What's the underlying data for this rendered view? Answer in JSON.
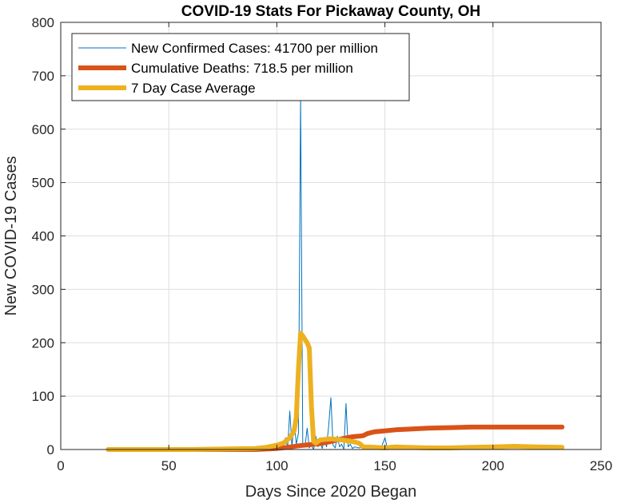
{
  "chart_data": {
    "type": "line",
    "title": "COVID-19 Stats For Pickaway County, OH",
    "xlabel": "Days Since 2020 Began",
    "ylabel": "New COVID-19 Cases",
    "xlim": [
      0,
      250
    ],
    "ylim": [
      0,
      800
    ],
    "xticks": [
      0,
      50,
      100,
      150,
      200,
      250
    ],
    "yticks": [
      0,
      100,
      200,
      300,
      400,
      500,
      600,
      700,
      800
    ],
    "grid": true,
    "legend_position": "top-left",
    "series": [
      {
        "name": "New Confirmed Cases: 41700 per million",
        "color": "#0072BD",
        "line_style": "thin",
        "x": [
          22,
          60,
          90,
          95,
          100,
          102,
          103,
          104,
          105,
          106,
          107,
          108,
          109,
          110,
          111,
          112,
          113,
          114,
          115,
          116,
          117,
          118,
          119,
          120,
          121,
          122,
          123,
          124,
          125,
          126,
          127,
          128,
          129,
          130,
          131,
          132,
          133,
          134,
          135,
          136,
          138,
          140,
          142,
          145,
          148,
          150,
          151,
          152,
          153,
          155,
          158,
          160,
          165,
          170,
          180,
          190,
          200,
          210,
          220,
          232
        ],
        "y": [
          0,
          0,
          0,
          0,
          0,
          5,
          0,
          22,
          3,
          72,
          5,
          55,
          10,
          30,
          660,
          10,
          5,
          40,
          3,
          8,
          0,
          25,
          5,
          15,
          2,
          20,
          5,
          45,
          97,
          8,
          3,
          25,
          5,
          10,
          0,
          86,
          5,
          10,
          2,
          5,
          3,
          5,
          2,
          3,
          0,
          22,
          5,
          0,
          8,
          3,
          5,
          2,
          3,
          5,
          2,
          5,
          8,
          3,
          5,
          2
        ]
      },
      {
        "name": "Cumulative Deaths: 718.5 per million",
        "color": "#D95319",
        "line_style": "thick",
        "x": [
          22,
          90,
          100,
          105,
          110,
          115,
          120,
          125,
          130,
          135,
          138,
          140,
          142,
          145,
          150,
          155,
          160,
          170,
          180,
          190,
          200,
          210,
          220,
          232
        ],
        "y": [
          0,
          0,
          2,
          4,
          7,
          9,
          11,
          15,
          20,
          24,
          25,
          26,
          30,
          33,
          35,
          37,
          38,
          40,
          41,
          42,
          42,
          42,
          42,
          42
        ]
      },
      {
        "name": "7 Day Case Average",
        "color": "#EDB120",
        "line_style": "thick",
        "x": [
          22,
          60,
          90,
          95,
          100,
          103,
          106,
          108,
          109,
          110,
          111,
          112,
          113,
          114,
          115,
          116,
          117,
          118,
          119,
          120,
          125,
          130,
          135,
          138,
          140,
          145,
          150,
          155,
          160,
          170,
          180,
          190,
          200,
          210,
          220,
          232
        ],
        "y": [
          0,
          0,
          2,
          4,
          8,
          12,
          22,
          35,
          60,
          150,
          218,
          213,
          206,
          200,
          190,
          80,
          15,
          12,
          15,
          18,
          20,
          18,
          15,
          12,
          5,
          4,
          3,
          5,
          4,
          3,
          3,
          4,
          5,
          6,
          5,
          4
        ]
      }
    ]
  }
}
